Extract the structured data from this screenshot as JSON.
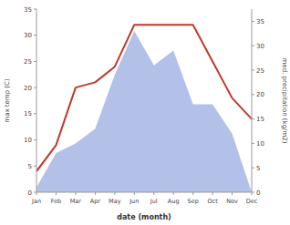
{
  "chart_data": {
    "type": "line",
    "x_label": "date (month)",
    "y_label": "max temp (C)",
    "y2_label": "med. precipitation (kg/m2)",
    "categories": [
      "Jan",
      "Feb",
      "Mar",
      "Apr",
      "May",
      "Jun",
      "Jul",
      "Aug",
      "Sep",
      "Oct",
      "Nov",
      "Dec"
    ],
    "series": [
      {
        "type": "area",
        "axis": "y2",
        "color": "#b3c0e8",
        "values": [
          1,
          8,
          10,
          13,
          24,
          33,
          26,
          29,
          18,
          18,
          12,
          0
        ]
      },
      {
        "type": "line",
        "color": "#c0392b",
        "values": [
          4,
          9,
          20,
          21,
          24,
          32,
          32,
          32,
          32,
          25,
          18,
          14
        ]
      }
    ],
    "ylim": [
      0,
      35
    ],
    "yticks": [
      0,
      5,
      10,
      15,
      20,
      25,
      30,
      35
    ],
    "y2lim": [
      0,
      37.5
    ],
    "y2ticks": [
      0,
      5,
      10,
      15,
      20,
      25,
      30,
      35
    ],
    "grid": false
  }
}
